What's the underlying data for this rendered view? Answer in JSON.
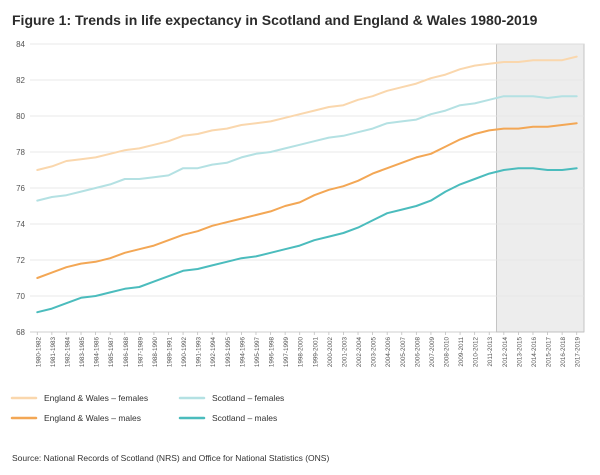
{
  "chart_data": {
    "type": "line",
    "title": "Figure 1: Trends in life expectancy in Scotland and England & Wales 1980-2019",
    "source": "Source: National Records of Scotland (NRS) and Office for National Statistics (ONS)",
    "xlabel": "",
    "ylabel": "",
    "ylim": [
      68,
      84
    ],
    "yticks": [
      68,
      70,
      72,
      74,
      76,
      78,
      80,
      82,
      84
    ],
    "grid": true,
    "legend_position": "bottom-left",
    "highlight_region": {
      "from": "2012-2014",
      "to": "2017-2019",
      "color": "#ededed"
    },
    "categories": [
      "1980-1982",
      "1981-1983",
      "1982-1984",
      "1983-1985",
      "1984-1986",
      "1985-1987",
      "1986-1988",
      "1987-1989",
      "1988-1990",
      "1989-1991",
      "1990-1992",
      "1991-1993",
      "1992-1994",
      "1993-1995",
      "1994-1996",
      "1995-1997",
      "1996-1998",
      "1997-1999",
      "1998-2000",
      "1999-2001",
      "2000-2002",
      "2001-2003",
      "2002-2004",
      "2003-2005",
      "2004-2006",
      "2005-2007",
      "2006-2008",
      "2007-2009",
      "2008-2010",
      "2009-2011",
      "2010-2012",
      "2011-2013",
      "2012-2014",
      "2013-2015",
      "2014-2016",
      "2015-2017",
      "2016-2018",
      "2017-2019"
    ],
    "series": [
      {
        "name": "England & Wales – females",
        "color": "#fad7ad",
        "values": [
          77.0,
          77.2,
          77.5,
          77.6,
          77.7,
          77.9,
          78.1,
          78.2,
          78.4,
          78.6,
          78.9,
          79.0,
          79.2,
          79.3,
          79.5,
          79.6,
          79.7,
          79.9,
          80.1,
          80.3,
          80.5,
          80.6,
          80.9,
          81.1,
          81.4,
          81.6,
          81.8,
          82.1,
          82.3,
          82.6,
          82.8,
          82.9,
          83.0,
          83.0,
          83.1,
          83.1,
          83.1,
          83.3
        ]
      },
      {
        "name": "England & Wales – males",
        "color": "#f3a755",
        "values": [
          71.0,
          71.3,
          71.6,
          71.8,
          71.9,
          72.1,
          72.4,
          72.6,
          72.8,
          73.1,
          73.4,
          73.6,
          73.9,
          74.1,
          74.3,
          74.5,
          74.7,
          75.0,
          75.2,
          75.6,
          75.9,
          76.1,
          76.4,
          76.8,
          77.1,
          77.4,
          77.7,
          77.9,
          78.3,
          78.7,
          79.0,
          79.2,
          79.3,
          79.3,
          79.4,
          79.4,
          79.5,
          79.6
        ]
      },
      {
        "name": "Scotland – females",
        "color": "#b4e1e3",
        "values": [
          75.3,
          75.5,
          75.6,
          75.8,
          76.0,
          76.2,
          76.5,
          76.5,
          76.6,
          76.7,
          77.1,
          77.1,
          77.3,
          77.4,
          77.7,
          77.9,
          78.0,
          78.2,
          78.4,
          78.6,
          78.8,
          78.9,
          79.1,
          79.3,
          79.6,
          79.7,
          79.8,
          80.1,
          80.3,
          80.6,
          80.7,
          80.9,
          81.1,
          81.1,
          81.1,
          81.0,
          81.1,
          81.1
        ]
      },
      {
        "name": "Scotland – males",
        "color": "#4bbcbd",
        "values": [
          69.1,
          69.3,
          69.6,
          69.9,
          70.0,
          70.2,
          70.4,
          70.5,
          70.8,
          71.1,
          71.4,
          71.5,
          71.7,
          71.9,
          72.1,
          72.2,
          72.4,
          72.6,
          72.8,
          73.1,
          73.3,
          73.5,
          73.8,
          74.2,
          74.6,
          74.8,
          75.0,
          75.3,
          75.8,
          76.2,
          76.5,
          76.8,
          77.0,
          77.1,
          77.1,
          77.0,
          77.0,
          77.1
        ]
      }
    ]
  }
}
